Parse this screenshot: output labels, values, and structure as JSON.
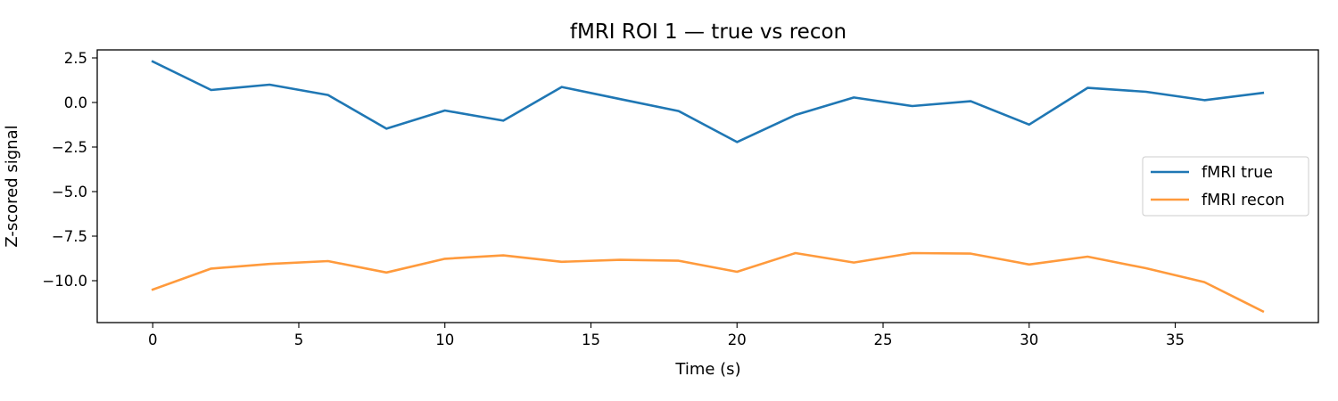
{
  "chart_data": {
    "type": "line",
    "title": "fMRI ROI 1 — true vs recon",
    "xlabel": "Time (s)",
    "ylabel": "Z-scored signal",
    "xlim": [
      -1.9,
      39.9
    ],
    "ylim": [
      -12.35,
      2.95
    ],
    "xticks": [
      0,
      5,
      10,
      15,
      20,
      25,
      30,
      35
    ],
    "yticks": [
      2.5,
      0.0,
      -2.5,
      -5.0,
      -7.5,
      -10.0
    ],
    "ytick_labels": [
      "2.5",
      "0.0",
      "−2.5",
      "−5.0",
      "−7.5",
      "−10.0"
    ],
    "grid": false,
    "legend_position": "center-right",
    "x": [
      0,
      2,
      4,
      6,
      8,
      10,
      12,
      14,
      16,
      18,
      20,
      22,
      24,
      26,
      28,
      30,
      32,
      34,
      36,
      38
    ],
    "series": [
      {
        "name": "fMRI true",
        "color": "#1f77b4",
        "values": [
          2.3,
          0.7,
          1.0,
          0.42,
          -1.47,
          -0.45,
          -1.02,
          0.87,
          0.19,
          -0.48,
          -2.22,
          -0.7,
          0.28,
          -0.2,
          0.07,
          -1.24,
          0.82,
          0.6,
          0.13,
          0.54
        ]
      },
      {
        "name": "fMRI recon",
        "color": "#ff9a3c",
        "values": [
          -10.5,
          -9.32,
          -9.06,
          -8.9,
          -9.54,
          -8.77,
          -8.58,
          -8.94,
          -8.83,
          -8.88,
          -9.5,
          -8.45,
          -8.98,
          -8.45,
          -8.48,
          -9.09,
          -8.65,
          -9.3,
          -10.08,
          -11.72
        ]
      }
    ]
  }
}
